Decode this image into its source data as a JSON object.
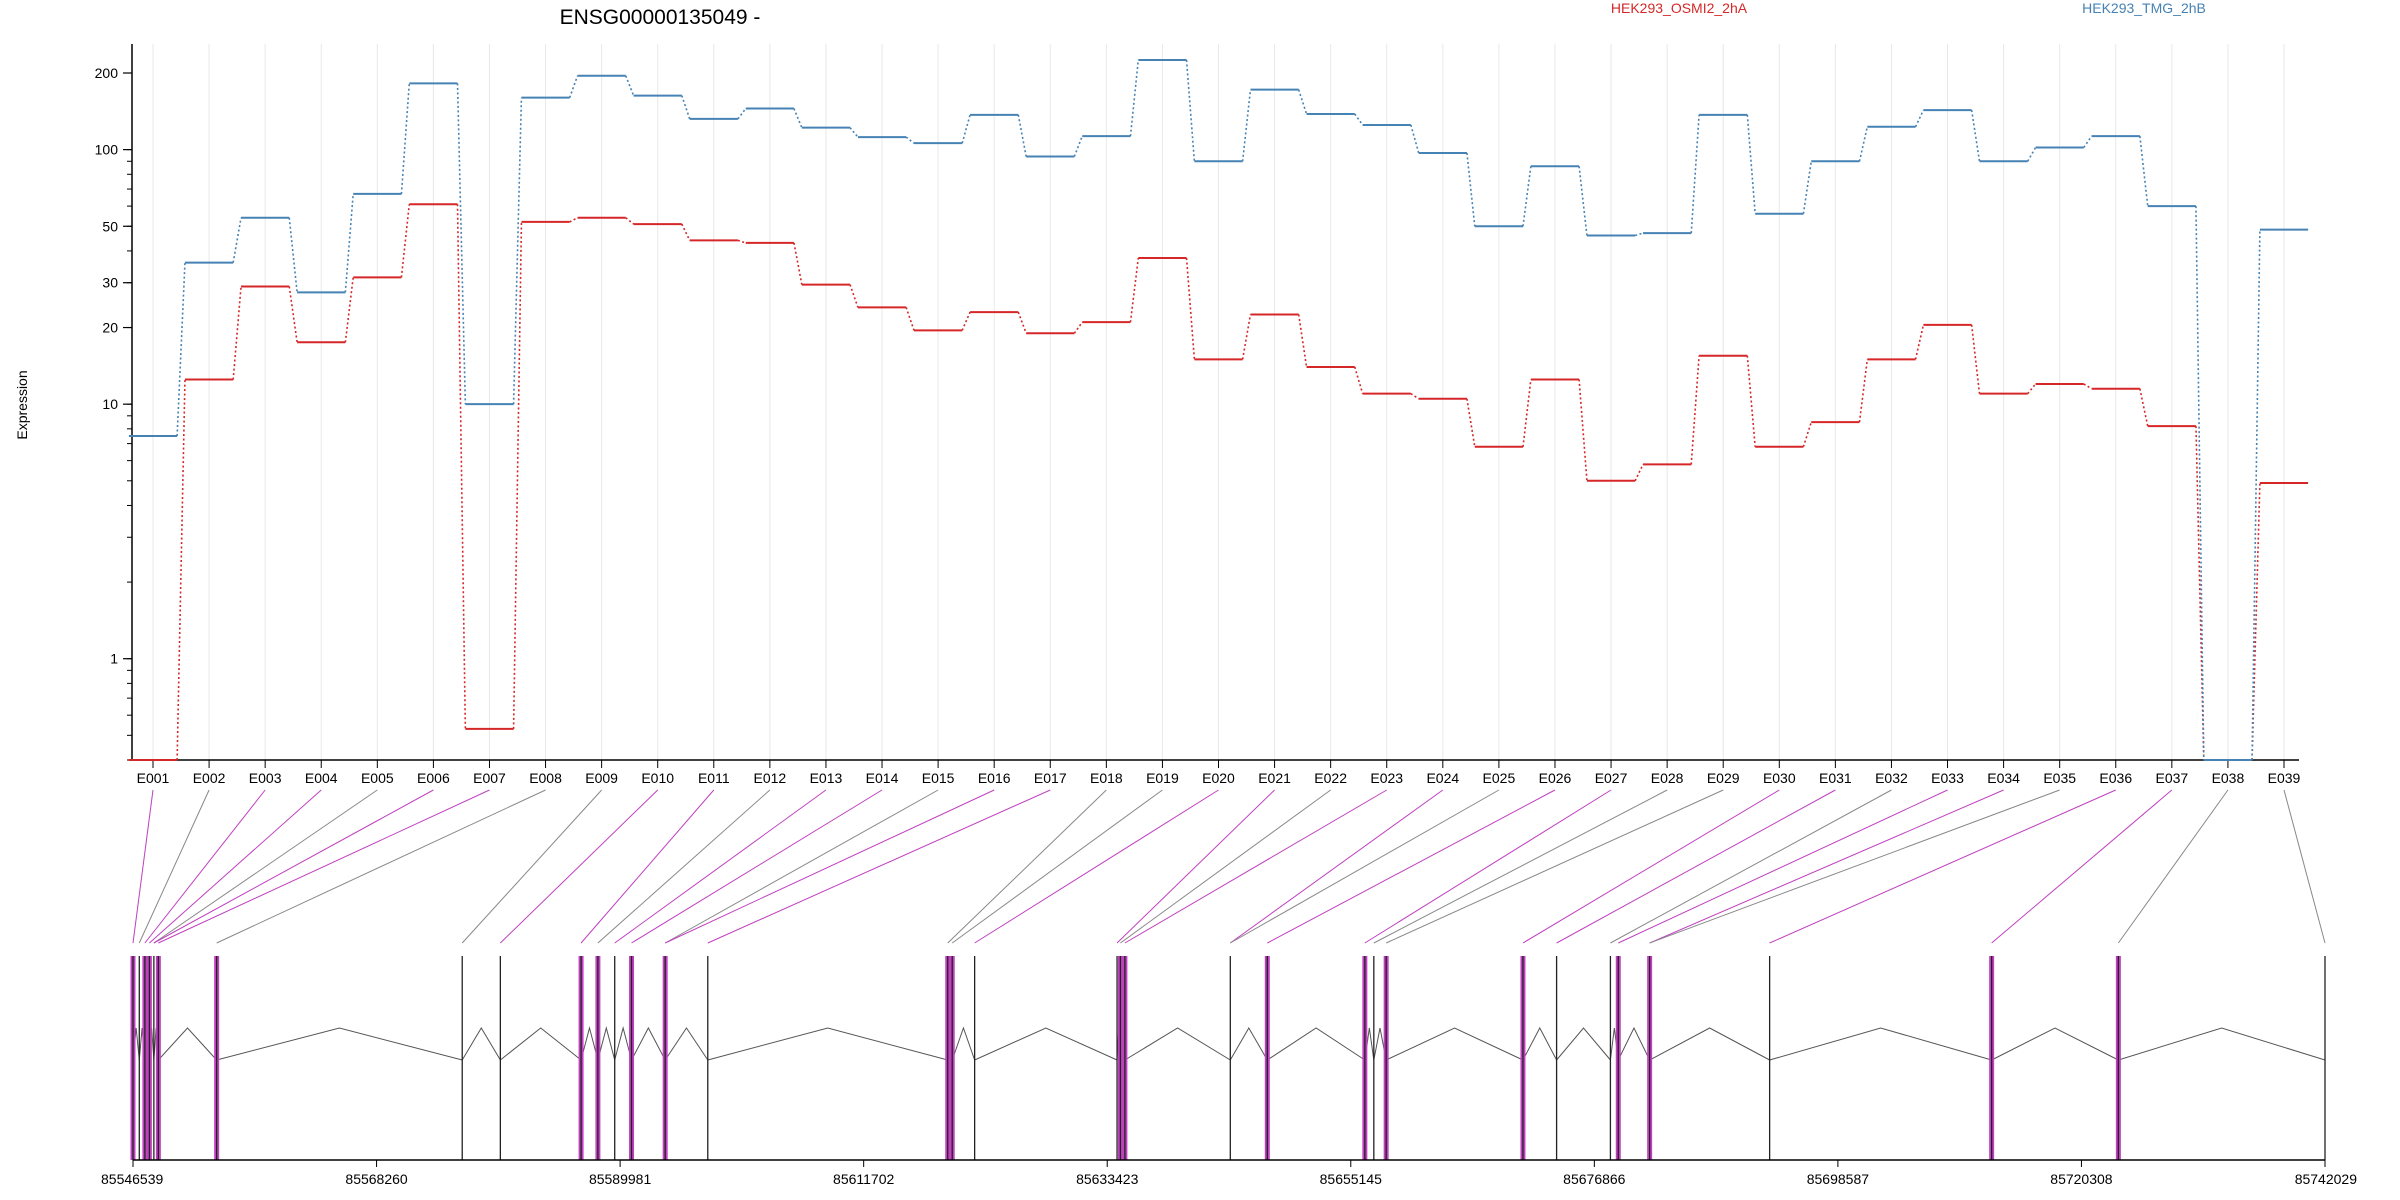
{
  "chart_data": {
    "type": "line",
    "title": "ENSG00000135049 -",
    "ylabel": "Expression",
    "yscale": "log",
    "ylim": [
      0.4,
      260
    ],
    "yticks": [
      1,
      10,
      20,
      30,
      50,
      100,
      200
    ],
    "categories": [
      "E001",
      "E002",
      "E003",
      "E004",
      "E005",
      "E006",
      "E007",
      "E008",
      "E009",
      "E010",
      "E011",
      "E012",
      "E013",
      "E014",
      "E015",
      "E016",
      "E017",
      "E018",
      "E019",
      "E020",
      "E021",
      "E022",
      "E023",
      "E024",
      "E025",
      "E026",
      "E027",
      "E028",
      "E029",
      "E030",
      "E031",
      "E032",
      "E033",
      "E034",
      "E035",
      "E036",
      "E037",
      "E038",
      "E039"
    ],
    "series": [
      {
        "name": "HEK293_OSMI2_2hA",
        "color": "#d62728",
        "values": [
          0.4,
          12.5,
          29,
          17.5,
          31.5,
          61,
          0.53,
          52,
          54,
          51,
          44,
          43,
          29.5,
          24,
          19.5,
          23,
          19,
          21,
          37.5,
          15,
          22.5,
          14,
          11,
          10.5,
          6.8,
          12.5,
          5,
          5.8,
          15.5,
          6.8,
          8.5,
          15,
          20.5,
          11,
          12,
          11.5,
          8.2,
          0.4,
          4.9
        ]
      },
      {
        "name": "HEK293_TMG_2hB",
        "color": "#4682b4",
        "values": [
          7.5,
          36,
          54,
          27.5,
          67,
          182,
          10,
          160,
          195,
          163,
          132,
          145,
          122,
          112,
          106,
          137,
          94,
          113,
          225,
          90,
          172,
          138,
          125,
          97,
          50,
          86,
          46,
          47,
          137,
          56,
          90,
          123,
          143,
          90,
          102,
          113,
          60,
          0.4,
          48.5
        ]
      }
    ],
    "gene_model": {
      "coordinate_ticks": [
        "85546539",
        "85568260",
        "85589981",
        "85611702",
        "85633423",
        "85655145",
        "85676866",
        "85698587",
        "85720308",
        "85742029"
      ],
      "coord_start": 85546539,
      "coord_end": 85742029,
      "exon_positions": [
        85546539,
        85547100,
        85547600,
        85548000,
        85548400,
        85548800,
        85554000,
        85575900,
        85579300,
        85586500,
        85588000,
        85589500,
        85591000,
        85594000,
        85597800,
        85619200,
        85619600,
        85621600,
        85634300,
        85634600,
        85635000,
        85644400,
        85647700,
        85656400,
        85657200,
        85658300,
        85670500,
        85673500,
        85678300,
        85679000,
        85681800,
        85692500,
        85712300,
        85723600,
        85742029
      ],
      "highlight_color": "#c040c0"
    }
  }
}
